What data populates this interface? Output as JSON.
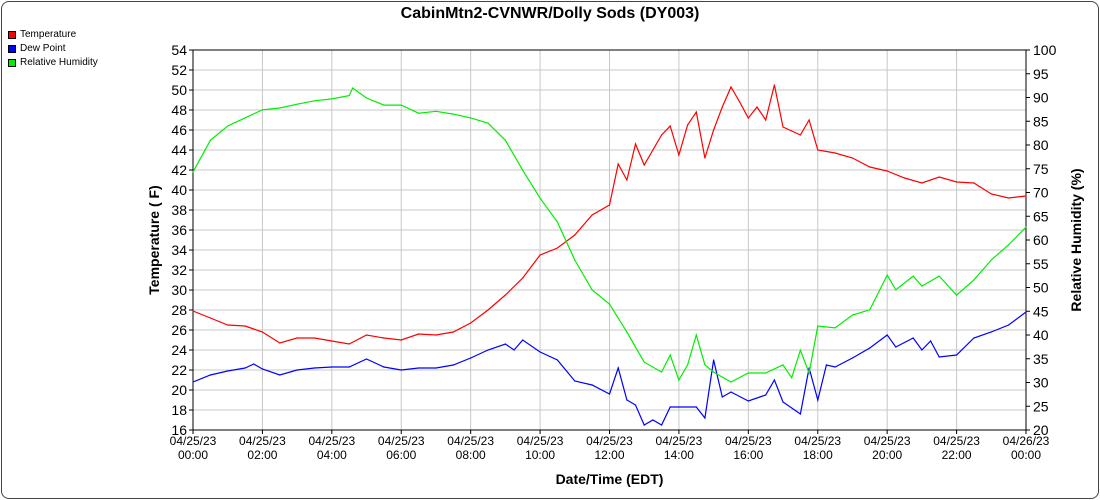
{
  "chart_data": {
    "type": "line",
    "title": "CabinMtn2-CVNWR/Dolly Sods (DY003)",
    "xlabel": "Date/Time (EDT)",
    "ylabel": "Temperature ( F)",
    "y2label": "Relative Humidity (%)",
    "ylim": [
      16,
      54
    ],
    "y2lim": [
      20,
      100
    ],
    "xlim_hours": [
      0,
      24
    ],
    "grid": true,
    "legend_position": "top-left",
    "yticks": [
      "16",
      "18",
      "20",
      "22",
      "24",
      "26",
      "28",
      "30",
      "32",
      "34",
      "36",
      "38",
      "40",
      "42",
      "44",
      "46",
      "48",
      "50",
      "52",
      "54"
    ],
    "y2ticks": [
      "20",
      "25",
      "30",
      "35",
      "40",
      "45",
      "50",
      "55",
      "60",
      "65",
      "70",
      "75",
      "80",
      "85",
      "90",
      "95",
      "100"
    ],
    "xticks": [
      {
        "date": "04/25/23",
        "time": "00:00"
      },
      {
        "date": "04/25/23",
        "time": "02:00"
      },
      {
        "date": "04/25/23",
        "time": "04:00"
      },
      {
        "date": "04/25/23",
        "time": "06:00"
      },
      {
        "date": "04/25/23",
        "time": "08:00"
      },
      {
        "date": "04/25/23",
        "time": "10:00"
      },
      {
        "date": "04/25/23",
        "time": "12:00"
      },
      {
        "date": "04/25/23",
        "time": "14:00"
      },
      {
        "date": "04/25/23",
        "time": "16:00"
      },
      {
        "date": "04/25/23",
        "time": "18:00"
      },
      {
        "date": "04/25/23",
        "time": "20:00"
      },
      {
        "date": "04/25/23",
        "time": "22:00"
      },
      {
        "date": "04/26/23",
        "time": "00:00"
      }
    ],
    "series": [
      {
        "name": "Temperature",
        "color": "#ff0000",
        "axis": "left",
        "x": [
          0,
          0.5,
          1,
          1.5,
          2,
          2.5,
          3,
          3.5,
          4,
          4.5,
          5,
          5.5,
          6,
          6.5,
          7,
          7.5,
          8,
          8.5,
          9,
          9.5,
          10,
          10.5,
          11,
          11.5,
          12,
          12.25,
          12.5,
          12.75,
          13,
          13.5,
          13.75,
          14,
          14.25,
          14.5,
          14.75,
          15,
          15.25,
          15.5,
          15.75,
          16,
          16.25,
          16.5,
          16.75,
          17,
          17.5,
          17.75,
          18,
          18.5,
          19,
          19.5,
          20,
          20.5,
          21,
          21.5,
          22,
          22.5,
          23,
          23.5,
          24
        ],
        "y": [
          27.9,
          27.2,
          26.5,
          26.4,
          25.8,
          24.7,
          25.2,
          25.2,
          24.9,
          24.6,
          25.5,
          25.2,
          25.0,
          25.6,
          25.5,
          25.8,
          26.7,
          28.0,
          29.5,
          31.2,
          33.5,
          34.2,
          35.5,
          37.5,
          38.5,
          42.6,
          41.0,
          44.6,
          42.5,
          45.5,
          46.4,
          43.5,
          46.5,
          47.8,
          43.2,
          46.0,
          48.3,
          50.3,
          48.8,
          47.2,
          48.3,
          47.0,
          50.5,
          46.3,
          45.5,
          47.0,
          44.0,
          43.7,
          43.2,
          42.3,
          41.9,
          41.2,
          40.7,
          41.3,
          40.8,
          40.7,
          39.6,
          39.2,
          39.4
        ]
      },
      {
        "name": "Dew Point",
        "color": "#0000ff",
        "axis": "left",
        "x": [
          0,
          0.5,
          1,
          1.5,
          1.75,
          2,
          2.5,
          3,
          3.5,
          4,
          4.5,
          5,
          5.5,
          6,
          6.5,
          7,
          7.5,
          8,
          8.5,
          9,
          9.25,
          9.5,
          10,
          10.5,
          11,
          11.5,
          12,
          12.25,
          12.5,
          12.75,
          13,
          13.25,
          13.5,
          13.75,
          14,
          14.5,
          14.75,
          15,
          15.25,
          15.5,
          16,
          16.5,
          16.75,
          17,
          17.5,
          17.75,
          18,
          18.25,
          18.5,
          19,
          19.5,
          20,
          20.25,
          20.75,
          21,
          21.25,
          21.5,
          22,
          22.5,
          23,
          23.5,
          24
        ],
        "y": [
          20.8,
          21.5,
          21.9,
          22.2,
          22.6,
          22.1,
          21.5,
          22.0,
          22.2,
          22.3,
          22.3,
          23.1,
          22.3,
          22.0,
          22.2,
          22.2,
          22.5,
          23.2,
          24.0,
          24.6,
          24.0,
          25.0,
          23.8,
          23.0,
          20.9,
          20.5,
          19.6,
          22.2,
          19.0,
          18.5,
          16.5,
          17.0,
          16.5,
          18.3,
          18.3,
          18.3,
          17.2,
          23.0,
          19.3,
          19.8,
          18.9,
          19.5,
          21.0,
          18.8,
          17.6,
          22.2,
          19.0,
          22.5,
          22.3,
          23.2,
          24.2,
          25.5,
          24.3,
          25.2,
          24.0,
          24.9,
          23.3,
          23.5,
          25.2,
          25.8,
          26.5,
          27.8
        ]
      },
      {
        "name": "Relative Humidity",
        "color": "#00ee00",
        "axis": "right",
        "x": [
          0,
          0.5,
          1,
          1.5,
          2,
          2.5,
          3,
          3.5,
          4,
          4.5,
          4.6,
          5,
          5.5,
          6,
          6.5,
          7,
          7.5,
          8,
          8.5,
          9,
          9.5,
          10,
          10.5,
          11,
          11.5,
          12,
          12.5,
          13,
          13.5,
          13.75,
          14,
          14.25,
          14.5,
          14.75,
          15,
          15.5,
          16,
          16.5,
          17,
          17.25,
          17.5,
          17.75,
          18,
          18.5,
          19,
          19.5,
          20,
          20.25,
          20.75,
          21,
          21.5,
          22,
          22.5,
          23,
          23.5,
          24
        ],
        "y": [
          74.3,
          81,
          84,
          85.7,
          87.4,
          87.8,
          88.6,
          89.3,
          89.7,
          90.4,
          92,
          89.9,
          88.4,
          88.4,
          86.7,
          87.1,
          86.5,
          85.7,
          84.6,
          81,
          74.7,
          68.8,
          63.8,
          55.8,
          49.5,
          46.5,
          40.6,
          34.3,
          32.2,
          35.8,
          30.5,
          33.7,
          40,
          33.7,
          32.2,
          30.1,
          32,
          32,
          33.7,
          31,
          36.8,
          32,
          41.9,
          41.5,
          44.2,
          45.3,
          52.6,
          49.5,
          52.4,
          50.3,
          52.4,
          48.4,
          51.6,
          55.8,
          59,
          62.7
        ]
      }
    ]
  }
}
